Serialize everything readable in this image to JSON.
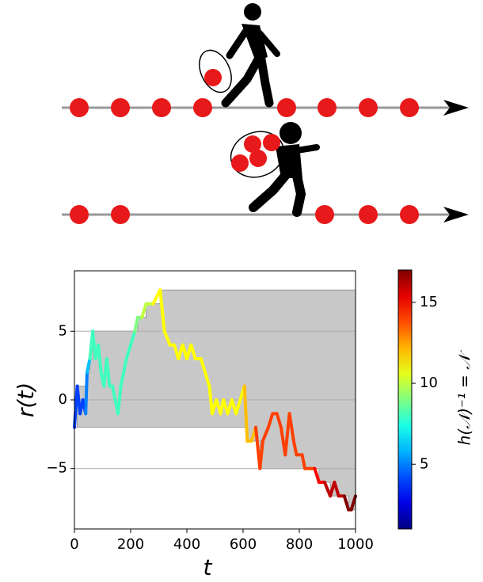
{
  "chart_data": {
    "type": "line",
    "x_label": "t",
    "y_label": "r(t)",
    "x": [
      0,
      10,
      20,
      30,
      40,
      45,
      55,
      65,
      75,
      85,
      95,
      105,
      115,
      125,
      135,
      145,
      155,
      165,
      175,
      185,
      200,
      215,
      225,
      240,
      255,
      280,
      305,
      320,
      340,
      355,
      370,
      385,
      400,
      415,
      430,
      450,
      465,
      480,
      490,
      505,
      520,
      530,
      545,
      560,
      575,
      590,
      605,
      615,
      630,
      645,
      660,
      670,
      690,
      705,
      720,
      735,
      750,
      765,
      780,
      790,
      810,
      820,
      840,
      855,
      870,
      890,
      910,
      925,
      940,
      960,
      975,
      985,
      1000
    ],
    "series": [
      {
        "values": [
          -2,
          1,
          -1,
          0,
          -1,
          2,
          3,
          5,
          3,
          4,
          2,
          1,
          3,
          1,
          1,
          0,
          -1,
          1,
          2,
          3,
          4,
          5,
          6,
          6,
          7,
          7,
          8,
          5,
          4,
          4,
          3,
          4,
          3,
          4,
          3,
          3,
          2,
          1,
          -1,
          0,
          -1,
          0,
          -1,
          0,
          -1,
          0,
          1,
          -3,
          -3,
          -2,
          -5,
          -3,
          -2,
          -1,
          -1,
          -2,
          -4,
          -1,
          -3,
          -4,
          -4,
          -5,
          -5,
          -5,
          -6,
          -6,
          -7,
          -6,
          -7,
          -7,
          -8,
          -8,
          -7
        ]
      }
    ],
    "xlim": [
      0,
      1000
    ],
    "xticks": [
      0,
      200,
      400,
      600,
      800,
      1000
    ],
    "ylim": [
      -9.4,
      9.4
    ],
    "yticks": [
      {
        "value": -5,
        "label": "−5"
      },
      0,
      5
    ],
    "grid": true,
    "shade_range": true,
    "colorbar": {
      "label": "h(𝒩)⁻¹ = 𝒩",
      "clim": [
        1,
        17
      ],
      "ticks": [
        5,
        10,
        15
      ],
      "colormap": "jet"
    }
  }
}
